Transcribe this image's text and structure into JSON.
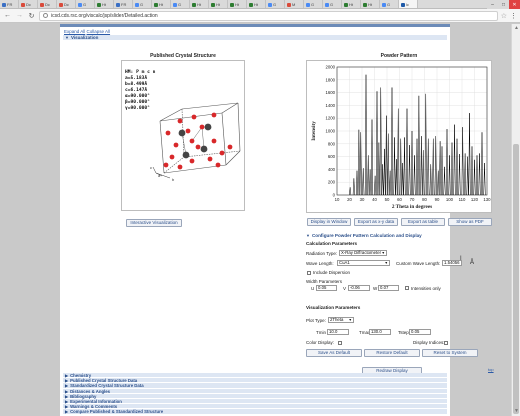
{
  "browser": {
    "tabs": [
      {
        "label": "FR",
        "color": "#3a6fc4"
      },
      {
        "label": "Dc",
        "color": "#d94a3a"
      },
      {
        "label": "Dc",
        "color": "#d94a3a"
      },
      {
        "label": "Dc",
        "color": "#d94a3a"
      },
      {
        "label": "G",
        "color": "#4a8af4"
      },
      {
        "label": "Ht",
        "color": "#2e7d32"
      },
      {
        "label": "FR",
        "color": "#3a6fc4"
      },
      {
        "label": "G",
        "color": "#4a8af4"
      },
      {
        "label": "Ht",
        "color": "#2e7d32"
      },
      {
        "label": "G",
        "color": "#4a8af4"
      },
      {
        "label": "Ht",
        "color": "#2e7d32"
      },
      {
        "label": "Ht",
        "color": "#2e7d32"
      },
      {
        "label": "Ht",
        "color": "#2e7d32"
      },
      {
        "label": "Ht",
        "color": "#2e7d32"
      },
      {
        "label": "G",
        "color": "#4a8af4"
      },
      {
        "label": "M",
        "color": "#d94a3a"
      },
      {
        "label": "G",
        "color": "#4a8af4"
      },
      {
        "label": "G",
        "color": "#4a8af4"
      },
      {
        "label": "Ht",
        "color": "#2e7d32"
      },
      {
        "label": "Ht",
        "color": "#2e7d32"
      },
      {
        "label": "G",
        "color": "#4a8af4"
      },
      {
        "label": "lc",
        "color": "#1e5aa8"
      }
    ],
    "url": "icsd.cds.rsc.org/viscalc/jsp/slider/Detailed.action"
  },
  "page": {
    "expand_all": "Expand All",
    "collapse_all": "Collapse All",
    "visualization_header": "Visualization",
    "crystal_title": "Published Crystal Structure",
    "pattern_title": "Powder Pattern",
    "interactive_button": "Interactive Visualization",
    "cell_params": [
      "HM: P m c n",
      "a=5.183Å",
      "b=8.499Å",
      "c=6.147Å",
      "α=90.000°",
      "β=90.000°",
      "γ=90.000°"
    ],
    "axis_labels": [
      "a",
      "b",
      "c"
    ],
    "pattern_buttons": [
      "Display in Window",
      "Export as x-y data",
      "Export as table",
      "Show as PDF"
    ],
    "configure_link": "Configure Powder Pattern Calculation and Display",
    "calc_params_head": "Calculation Parameters",
    "radiation_label": "Radiation Type:",
    "radiation_value": "X-Ray Diffractometer",
    "wavelength_label": "Wave Length:",
    "wavelength_value": "CuA1",
    "custom_wl_label": "Custom Wave Length:",
    "custom_wl_value": "1.54056",
    "angstrom": "Å",
    "dispersion_label": "Include Dispersion",
    "width_params_label": "Width Parameters",
    "u_label": "U",
    "u_value": "0.05",
    "v_label": "V",
    "v_value": "-0.06",
    "w_label": "W",
    "w_value": "0.07",
    "intensities_only": "Intensities only",
    "vis_params_head": "Visualization Parameters",
    "plot_type_label": "Plot Type:",
    "plot_type_value": "2Theta",
    "tmin_label": "Tmin",
    "tmin_value": "10.0",
    "tmax_label": "Tmax",
    "tmax_value": "130.0",
    "tstep_label": "Tstep",
    "tstep_value": "0.05",
    "color_display_label": "Color Display:",
    "display_indices_label": "Display Indices:",
    "save_default": "Save As Default",
    "restore_default": "Restore Default",
    "reset_system": "Reset to System",
    "redraw": "Redraw Display",
    "top_link": "top",
    "bottom_sections": [
      "Chemistry",
      "Published Crystal Structure Data",
      "Standardized Crystal Structure Data",
      "Distances & Angles",
      "Bibliography",
      "Experimental Information",
      "Warnings & Comments",
      "Compare Published & Standardized Structure"
    ]
  },
  "chart_data": {
    "type": "line",
    "title": "",
    "xlabel": "2 Theta in degrees",
    "ylabel": "Intensity",
    "xlim": [
      10,
      130
    ],
    "ylim": [
      0,
      2000
    ],
    "xticks": [
      10,
      20,
      30,
      40,
      50,
      60,
      70,
      80,
      90,
      100,
      110,
      120,
      130
    ],
    "yticks": [
      0,
      200,
      400,
      600,
      800,
      1000,
      1200,
      1400,
      1600,
      1800,
      2000
    ],
    "peaks": [
      {
        "x": 20.5,
        "y": 120
      },
      {
        "x": 23.5,
        "y": 260
      },
      {
        "x": 26.0,
        "y": 380
      },
      {
        "x": 27.5,
        "y": 1020
      },
      {
        "x": 29.0,
        "y": 980
      },
      {
        "x": 31.0,
        "y": 420
      },
      {
        "x": 33.2,
        "y": 1880
      },
      {
        "x": 35.0,
        "y": 620
      },
      {
        "x": 36.5,
        "y": 400
      },
      {
        "x": 38.0,
        "y": 1180
      },
      {
        "x": 40.5,
        "y": 300
      },
      {
        "x": 42.0,
        "y": 1620
      },
      {
        "x": 43.5,
        "y": 820
      },
      {
        "x": 45.0,
        "y": 1680
      },
      {
        "x": 46.5,
        "y": 480
      },
      {
        "x": 48.0,
        "y": 720
      },
      {
        "x": 49.5,
        "y": 1240
      },
      {
        "x": 51.0,
        "y": 960
      },
      {
        "x": 52.5,
        "y": 380
      },
      {
        "x": 54.0,
        "y": 1680
      },
      {
        "x": 56.0,
        "y": 900
      },
      {
        "x": 57.5,
        "y": 560
      },
      {
        "x": 59.0,
        "y": 1350
      },
      {
        "x": 61.0,
        "y": 880
      },
      {
        "x": 62.5,
        "y": 500
      },
      {
        "x": 64.0,
        "y": 900
      },
      {
        "x": 66.0,
        "y": 1350
      },
      {
        "x": 68.0,
        "y": 780
      },
      {
        "x": 70.0,
        "y": 1000
      },
      {
        "x": 72.0,
        "y": 620
      },
      {
        "x": 74.0,
        "y": 880
      },
      {
        "x": 75.5,
        "y": 1550
      },
      {
        "x": 77.5,
        "y": 920
      },
      {
        "x": 79.0,
        "y": 700
      },
      {
        "x": 81.0,
        "y": 1580
      },
      {
        "x": 83.0,
        "y": 880
      },
      {
        "x": 85.0,
        "y": 480
      },
      {
        "x": 87.0,
        "y": 880
      },
      {
        "x": 89.0,
        "y": 920
      },
      {
        "x": 91.0,
        "y": 380
      },
      {
        "x": 92.5,
        "y": 840
      },
      {
        "x": 94.0,
        "y": 760
      },
      {
        "x": 96.0,
        "y": 440
      },
      {
        "x": 98.0,
        "y": 1030
      },
      {
        "x": 100.0,
        "y": 620
      },
      {
        "x": 102.0,
        "y": 820
      },
      {
        "x": 104.0,
        "y": 1100
      },
      {
        "x": 106.0,
        "y": 880
      },
      {
        "x": 108.0,
        "y": 640
      },
      {
        "x": 110.5,
        "y": 1060
      },
      {
        "x": 112.5,
        "y": 650
      },
      {
        "x": 114.5,
        "y": 600
      },
      {
        "x": 116.0,
        "y": 1280
      },
      {
        "x": 118.0,
        "y": 760
      },
      {
        "x": 120.0,
        "y": 550
      },
      {
        "x": 122.0,
        "y": 620
      },
      {
        "x": 124.0,
        "y": 650
      },
      {
        "x": 126.0,
        "y": 980
      },
      {
        "x": 128.0,
        "y": 500
      }
    ],
    "grid": true,
    "line_color": "#000000"
  },
  "colors": {
    "section_bar": "#6c8bb8",
    "section_fill": "#dde6f3",
    "link": "#2b5aa7",
    "oxygen_atom": "#d8282a",
    "metal_atom": "#444444"
  }
}
